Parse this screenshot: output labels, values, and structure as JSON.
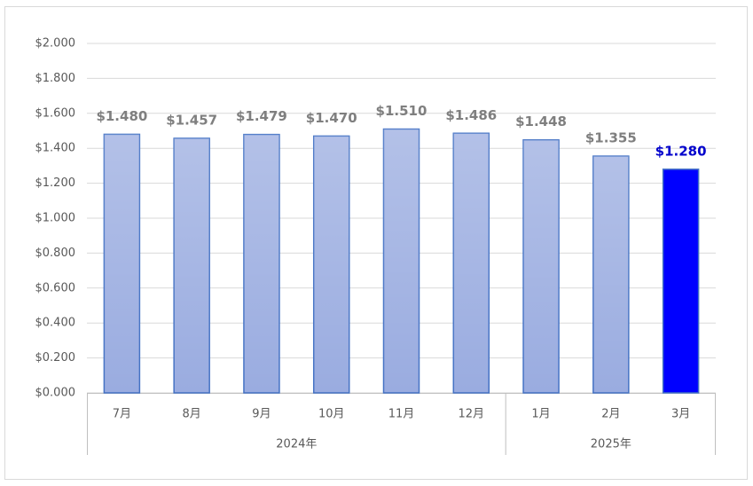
{
  "chart_data": {
    "type": "bar",
    "groups": [
      {
        "name": "2024年",
        "categories": [
          "7月",
          "8月",
          "9月",
          "10月",
          "11月",
          "12月"
        ]
      },
      {
        "name": "2025年",
        "categories": [
          "1月",
          "2月",
          "3月"
        ]
      }
    ],
    "values": [
      1.48,
      1.457,
      1.479,
      1.47,
      1.51,
      1.486,
      1.448,
      1.355,
      1.28
    ],
    "value_labels": [
      "$1.480",
      "$1.457",
      "$1.479",
      "$1.470",
      "$1.510",
      "$1.486",
      "$1.448",
      "$1.355",
      "$1.280"
    ],
    "colors": [
      "#9aace0",
      "#9aace0",
      "#9aace0",
      "#9aace0",
      "#9aace0",
      "#9aace0",
      "#9aace0",
      "#9aace0",
      "#0000ff"
    ],
    "value_label_colors": [
      "#7f7f7f",
      "#7f7f7f",
      "#7f7f7f",
      "#7f7f7f",
      "#7f7f7f",
      "#7f7f7f",
      "#7f7f7f",
      "#7f7f7f",
      "#0000cc"
    ],
    "ylim": [
      0,
      2
    ],
    "yticks": [
      {
        "value": 0,
        "label": "$0.000"
      },
      {
        "value": 0.2,
        "label": "$0.200"
      },
      {
        "value": 0.4,
        "label": "$0.400"
      },
      {
        "value": 0.6,
        "label": "$0.600"
      },
      {
        "value": 0.8,
        "label": "$0.800"
      },
      {
        "value": 1,
        "label": "$1.000"
      },
      {
        "value": 1.2,
        "label": "$1.200"
      },
      {
        "value": 1.4,
        "label": "$1.400"
      },
      {
        "value": 1.6,
        "label": "$1.600"
      },
      {
        "value": 1.8,
        "label": "$1.800"
      },
      {
        "value": 2,
        "label": "$2.000"
      }
    ],
    "grid": true
  }
}
